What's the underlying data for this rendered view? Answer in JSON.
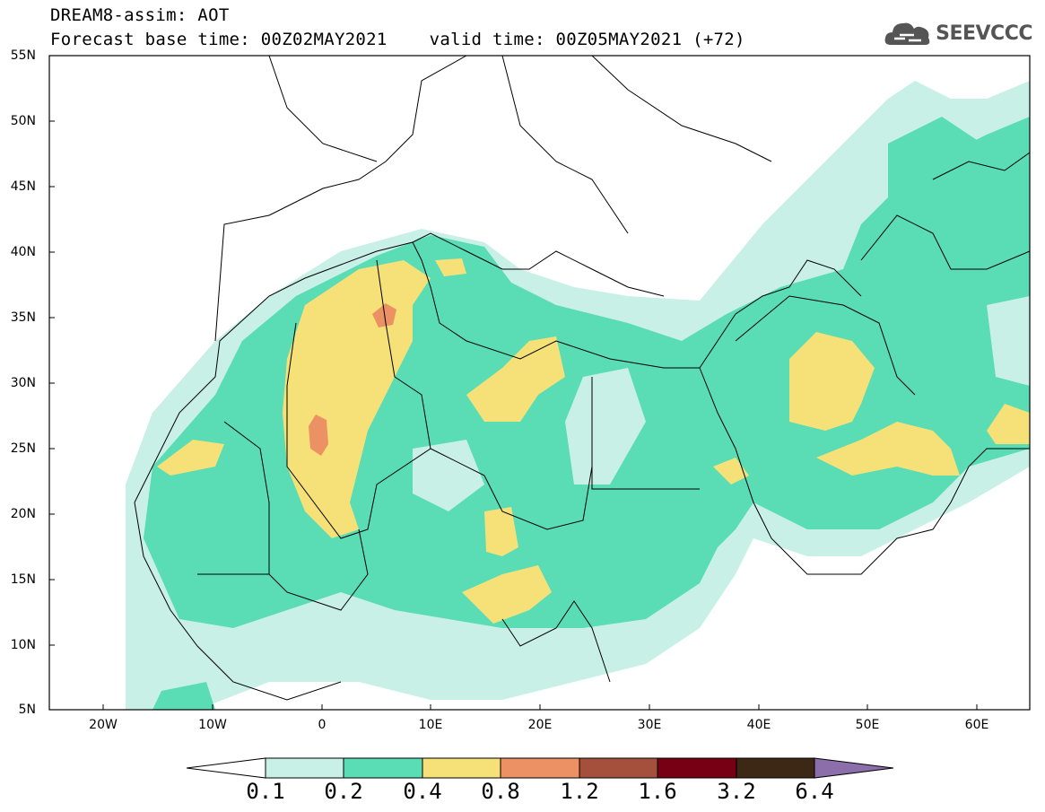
{
  "header": {
    "line1": "DREAM8-assim: AOT",
    "line2": "Forecast base time: 00Z02MAY2021    valid time: 00Z05MAY2021 (+72)"
  },
  "logo": {
    "text": "SEEVCCC",
    "icon": "cloud-icon"
  },
  "axes": {
    "lat_labels": [
      "55N",
      "50N",
      "45N",
      "40N",
      "35N",
      "30N",
      "25N",
      "20N",
      "15N",
      "10N",
      "5N"
    ],
    "lon_labels": [
      "20W",
      "10W",
      "0",
      "10E",
      "20E",
      "30E",
      "40E",
      "50E",
      "60E"
    ]
  },
  "colorbar": {
    "labels": [
      "0.1",
      "0.2",
      "0.4",
      "0.8",
      "1.2",
      "1.6",
      "3.2",
      "6.4"
    ],
    "colors": [
      "#ffffff",
      "#c8f0e6",
      "#5adcb4",
      "#f5e178",
      "#eb9164",
      "#a5503c",
      "#780014",
      "#3c2814",
      "#8c6eaa"
    ]
  }
}
